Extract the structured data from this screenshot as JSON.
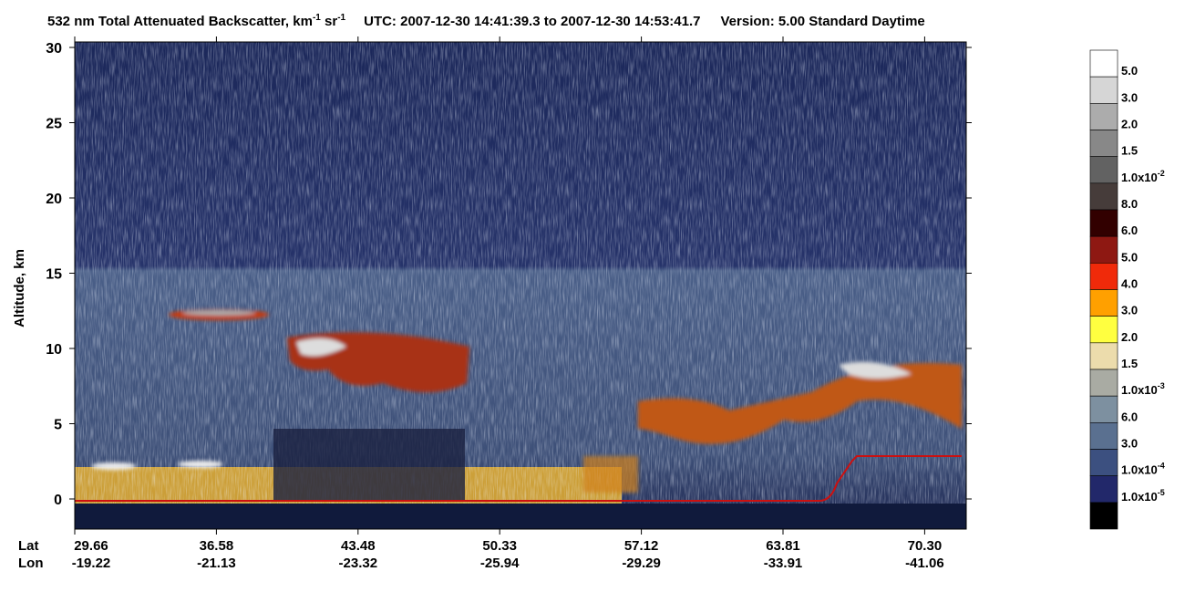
{
  "chart_data": {
    "type": "backscatter",
    "title": [
      "532 nm Total Attenuated Backscatter, km",
      "-1",
      " sr",
      "-1",
      "UTC:  2007-12-30 14:41:39.3  to  2007-12-30 14:53:41.7",
      "Version: 5.00  Standard  Daytime"
    ],
    "y_label": "Altitude, km",
    "ylim": [
      -2,
      30
    ],
    "yticks": [
      0,
      5,
      10,
      15,
      20,
      25,
      30
    ],
    "x_row_labels": [
      "Lat",
      "Lon"
    ],
    "lat": [
      "29.66",
      "36.58",
      "43.48",
      "50.33",
      "57.12",
      "63.81",
      "70.30"
    ],
    "lon": [
      "-19.22",
      "-21.13",
      "-23.32",
      "-25.94",
      "-29.29",
      "-33.91",
      "-41.06"
    ],
    "colorbar": {
      "colors": [
        "#ffffff",
        "#d6d6d6",
        "#acacac",
        "#888888",
        "#626262",
        "#463c3a",
        "#320000",
        "#8e1812",
        "#f02a0a",
        "#ffa000",
        "#ffff40",
        "#ecdcac",
        "#a9aba3",
        "#7d90a0",
        "#5a7090",
        "#3c5080",
        "#22286a",
        "#000000"
      ],
      "labels": [
        {
          "text": "5.0"
        },
        {
          "text": "3.0"
        },
        {
          "text": "2.0"
        },
        {
          "text": "1.5"
        },
        {
          "text": "1.0x10",
          "exp": "-2"
        },
        {
          "text": "8.0"
        },
        {
          "text": "6.0"
        },
        {
          "text": "5.0"
        },
        {
          "text": "4.0"
        },
        {
          "text": "3.0"
        },
        {
          "text": "2.0"
        },
        {
          "text": "1.5"
        },
        {
          "text": "1.0x10",
          "exp": "-3"
        },
        {
          "text": "6.0"
        },
        {
          "text": "3.0"
        },
        {
          "text": "1.0x10",
          "exp": "-4"
        },
        {
          "text": "1.0x10",
          "exp": "-5"
        }
      ]
    }
  }
}
